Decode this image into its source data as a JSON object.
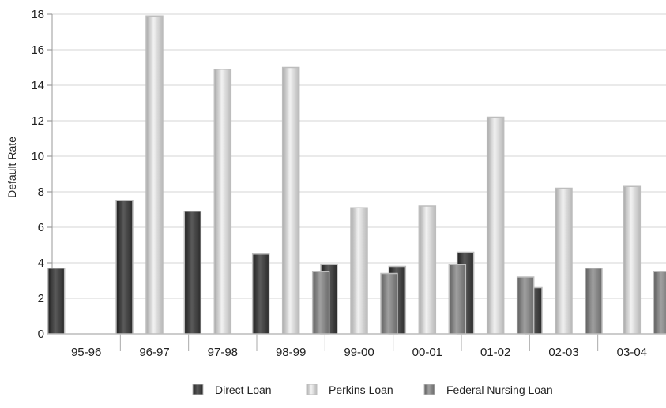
{
  "chart_data": {
    "type": "bar",
    "ylabel": "Default Rate",
    "xlabel": "",
    "ylim": [
      0,
      18
    ],
    "yticks": [
      0,
      2,
      4,
      6,
      8,
      10,
      12,
      14,
      16,
      18
    ],
    "categories": [
      "95-96",
      "96-97",
      "97-98",
      "98-99",
      "99-00",
      "00-01",
      "01-02",
      "02-03",
      "03-04"
    ],
    "series": [
      {
        "name": "Direct Loan",
        "values": [
          3.7,
          7.5,
          6.9,
          4.5,
          3.9,
          3.8,
          4.6,
          2.6,
          null
        ],
        "color": "#3a3a3a"
      },
      {
        "name": "Perkins Loan",
        "values": [
          null,
          17.9,
          14.9,
          15.0,
          7.1,
          7.2,
          12.2,
          8.2,
          8.3
        ],
        "color": "#d2d2d2"
      },
      {
        "name": "Federal Nursing Loan",
        "values": [
          null,
          null,
          null,
          3.5,
          3.4,
          3.9,
          3.2,
          3.7,
          3.5
        ],
        "color": "#8a8a8a"
      }
    ],
    "grid": true,
    "legend_position": "bottom"
  }
}
